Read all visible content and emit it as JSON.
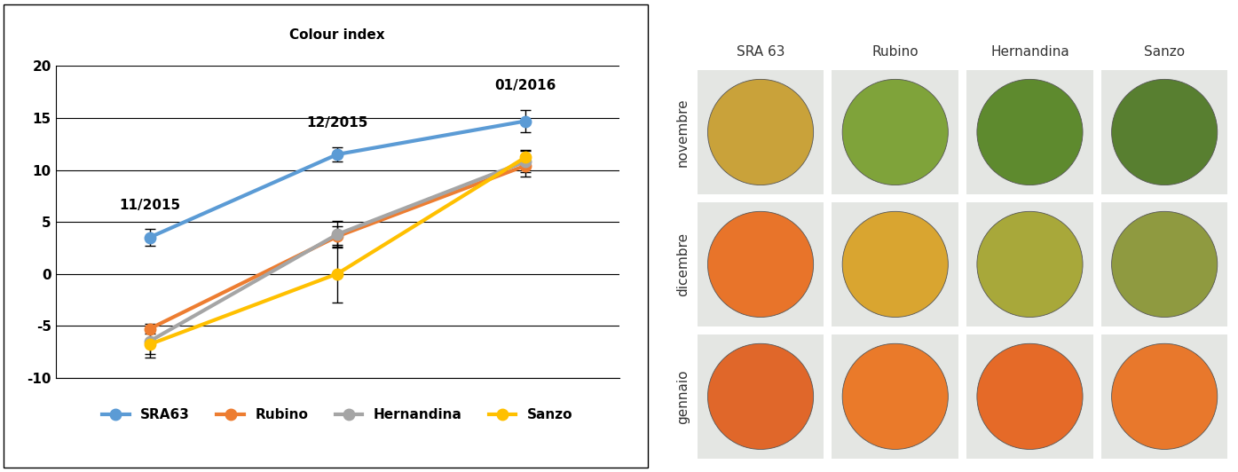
{
  "chart_data": {
    "type": "line",
    "title": "Colour index",
    "categories": [
      "11/2015",
      "12/2015",
      "01/2016"
    ],
    "series": [
      {
        "name": "SRA63",
        "color": "#5b9bd5",
        "values": [
          3.5,
          11.5,
          14.7
        ],
        "errors": [
          0.8,
          0.7,
          1.1
        ],
        "marker": "circle"
      },
      {
        "name": "Rubino",
        "color": "#ed7d31",
        "values": [
          -5.3,
          3.6,
          10.4
        ],
        "errors": [
          0.5,
          1.0,
          1.0
        ],
        "marker": "circle"
      },
      {
        "name": "Hernandina",
        "color": "#a5a5a5",
        "values": [
          -6.5,
          3.8,
          10.8
        ],
        "errors": [
          1.2,
          1.3,
          1.0
        ],
        "marker": "circle"
      },
      {
        "name": "Sanzo",
        "color": "#ffc000",
        "values": [
          -6.8,
          0,
          11.2
        ],
        "errors": [
          1.3,
          2.8,
          0.7
        ],
        "marker": "circle"
      }
    ],
    "ylim": [
      -10,
      20
    ],
    "yticks": [
      -10,
      -5,
      0,
      5,
      10,
      15,
      20
    ],
    "grid": true,
    "legend": "lower center",
    "tick_labels": "y"
  },
  "photo_grid": {
    "columns": [
      "SRA 63",
      "Rubino",
      "Hernandina",
      "Sanzo"
    ],
    "rows": [
      "novembre",
      "dicembre",
      "gennaio"
    ]
  }
}
